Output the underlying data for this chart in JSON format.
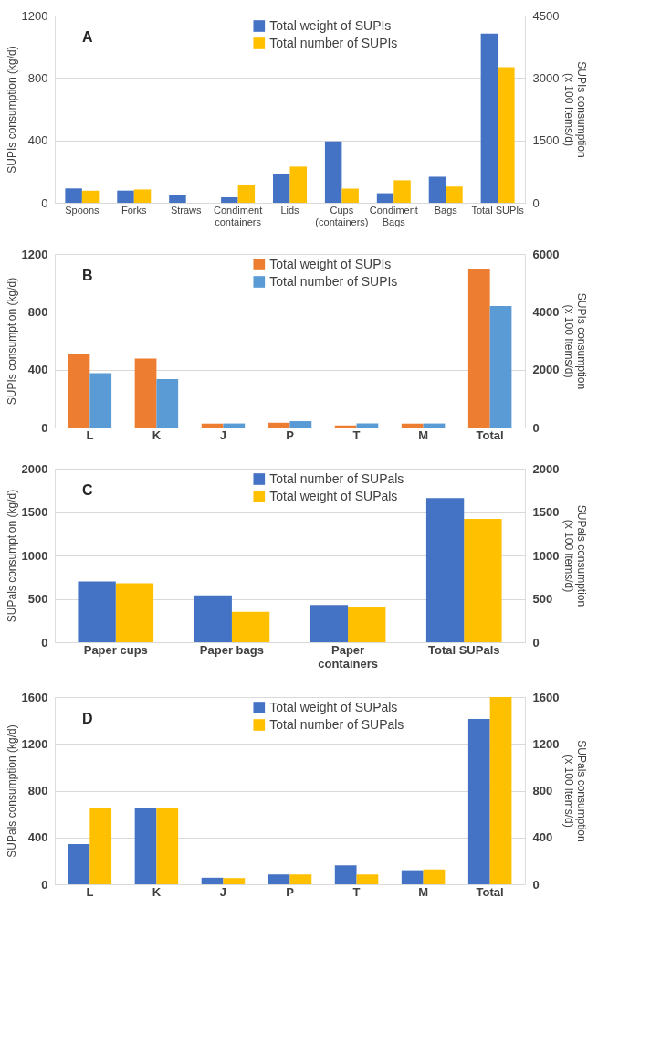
{
  "chart_data": [
    {
      "type": "bar",
      "title": "A",
      "ylabel": "SUPIs consumption (kg/d)",
      "y2label": "SUPIs consumption\n(x 100 Items/d)",
      "categories": [
        "Spoons",
        "Forks",
        "Straws",
        "Condiment\ncontainers",
        "Lids",
        "Cups\n(containers)",
        "Condiment\nBags",
        "Bags",
        "Total SUPIs"
      ],
      "series": [
        {
          "name": "Total weight of SUPIs",
          "color": "#4472c4",
          "values": [
            92,
            78,
            47,
            35,
            186,
            394,
            61,
            167,
            1084
          ]
        },
        {
          "name": "Total number of SUPIs",
          "color": "#ffc000",
          "axis": "y2",
          "values": [
            290,
            320,
            0,
            440,
            870,
            340,
            540,
            390,
            3260
          ]
        }
      ],
      "ylim": [
        0,
        1200
      ],
      "yticks": [
        0,
        400,
        800,
        1200
      ],
      "y2lim": [
        0,
        4500
      ],
      "y2ticks": [
        0,
        1500,
        3000,
        4500
      ],
      "grid": "y",
      "legend": "top"
    },
    {
      "type": "bar",
      "title": "B",
      "ylabel": "SUPIs consumption (kg/d)",
      "y2label": "SUPIs consumption\n(x 100 Items/d)",
      "categories": [
        "L",
        "K",
        "J",
        "P",
        "T",
        "M",
        "Total"
      ],
      "series": [
        {
          "name": "Total weight of SUPIs",
          "color": "#ed7d31",
          "values": [
            507,
            477,
            27,
            33,
            14,
            27,
            1092
          ]
        },
        {
          "name": "Total number of SUPIs",
          "color": "#5b9bd5",
          "axis": "y2",
          "values": [
            1880,
            1670,
            140,
            220,
            140,
            140,
            4200
          ]
        }
      ],
      "ylim": [
        0,
        1200
      ],
      "yticks": [
        0,
        400,
        800,
        1200
      ],
      "y2lim": [
        0,
        6000
      ],
      "y2ticks": [
        0,
        2000,
        4000,
        6000
      ],
      "grid": "y",
      "legend": "top"
    },
    {
      "type": "bar",
      "title": "C",
      "ylabel": "SUPals consumption (kg/d)",
      "y2label": "SUPals consumption\n(x 100 items/d)",
      "categories": [
        "Paper cups",
        "Paper bags",
        "Paper\ncontainers",
        "Total SUPals"
      ],
      "series": [
        {
          "name": "Total number of SUPals",
          "color": "#4472c4",
          "axis": "y2",
          "values": [
            700,
            540,
            430,
            1660
          ]
        },
        {
          "name": "Total weight of SUPals",
          "color": "#ffc000",
          "values": [
            680,
            350,
            410,
            1420
          ]
        }
      ],
      "ylim": [
        0,
        2000
      ],
      "yticks": [
        0,
        500,
        1000,
        1500,
        2000
      ],
      "y2lim": [
        0,
        2000
      ],
      "y2ticks": [
        0,
        500,
        1000,
        1500,
        2000
      ],
      "grid": "y",
      "legend": "top"
    },
    {
      "type": "bar",
      "title": "D",
      "ylabel": "SUPals consumption (kg/d)",
      "y2label": "SUPals consumption\n(x 100 items/d)",
      "categories": [
        "L",
        "K",
        "J",
        "P",
        "T",
        "M",
        "Total"
      ],
      "series": [
        {
          "name": "Total weight of SUPals",
          "color": "#4472c4",
          "values": [
            344,
            647,
            56,
            84,
            162,
            120,
            1413
          ]
        },
        {
          "name": "Total number of SUPals",
          "color": "#ffc000",
          "axis": "y2",
          "values": [
            647,
            654,
            53,
            84,
            84,
            127,
            1600
          ]
        }
      ],
      "ylim": [
        0,
        1600
      ],
      "yticks": [
        0,
        400,
        800,
        1200,
        1600
      ],
      "y2lim": [
        0,
        1600
      ],
      "y2ticks": [
        0,
        400,
        800,
        1200,
        1600
      ],
      "grid": "y",
      "legend": "top"
    }
  ]
}
